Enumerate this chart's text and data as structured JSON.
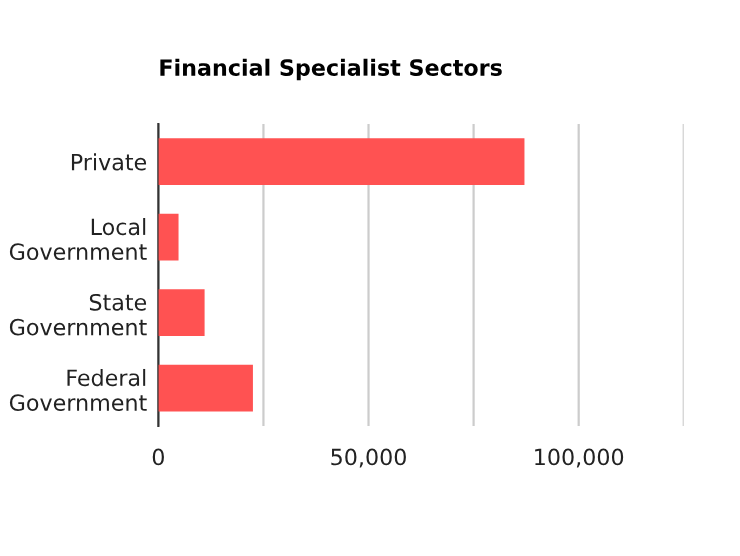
{
  "chart_data": {
    "type": "bar",
    "orientation": "horizontal",
    "title": "Financial Specialist Sectors",
    "categories": [
      "Private",
      "Local\nGovernment",
      "State\nGovernment",
      "Federal\nGovernment"
    ],
    "values": [
      87100,
      4800,
      11000,
      22500
    ],
    "color": "#ff5252",
    "xlim": [
      0,
      125000
    ],
    "xticks": [
      {
        "value": 0,
        "label": "0"
      },
      {
        "value": 25000,
        "label": null
      },
      {
        "value": 50000,
        "label": "50,000"
      },
      {
        "value": 75000,
        "label": null
      },
      {
        "value": 100000,
        "label": "100,000"
      },
      {
        "value": 125000,
        "label": null
      }
    ],
    "grid": "x"
  }
}
